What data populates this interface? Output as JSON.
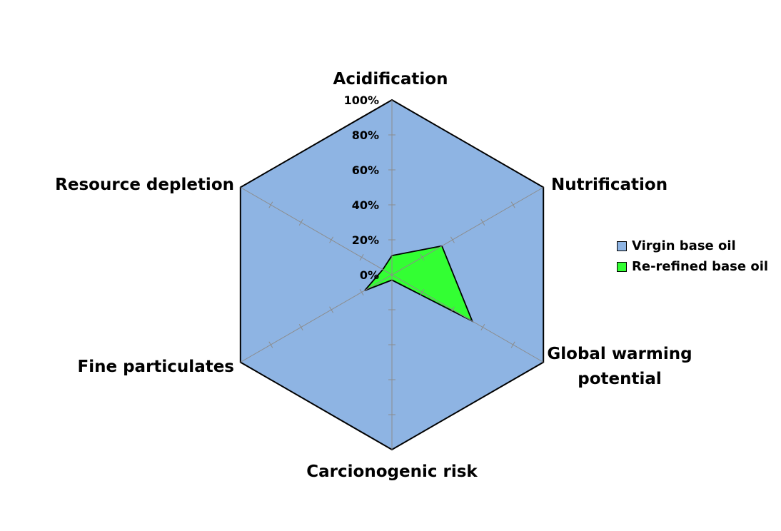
{
  "chart_data": {
    "type": "radar",
    "title": "",
    "categories": [
      "Acidification",
      "Nutrification",
      "Global warming potential",
      "Carcionogenic risk",
      "Fine particulates",
      "Resource depletion"
    ],
    "category_lines": [
      [
        "Acidification"
      ],
      [
        "Nutrification"
      ],
      [
        "Global warming",
        "potential"
      ],
      [
        "Carcionogenic risk"
      ],
      [
        "Fine particulates"
      ],
      [
        "Resource depletion"
      ]
    ],
    "ticks": [
      "0%",
      "20%",
      "40%",
      "60%",
      "80%",
      "100%"
    ],
    "rlim": [
      0,
      100
    ],
    "series": [
      {
        "name": "Virgin base oil",
        "values": [
          100,
          100,
          100,
          100,
          100,
          100
        ],
        "color": "#8EB4E3"
      },
      {
        "name": "Re-refined base oil",
        "values": [
          11,
          33,
          53,
          3,
          18,
          6
        ],
        "color": "#33FF33"
      }
    ],
    "legend_position": "right",
    "grid": true
  }
}
